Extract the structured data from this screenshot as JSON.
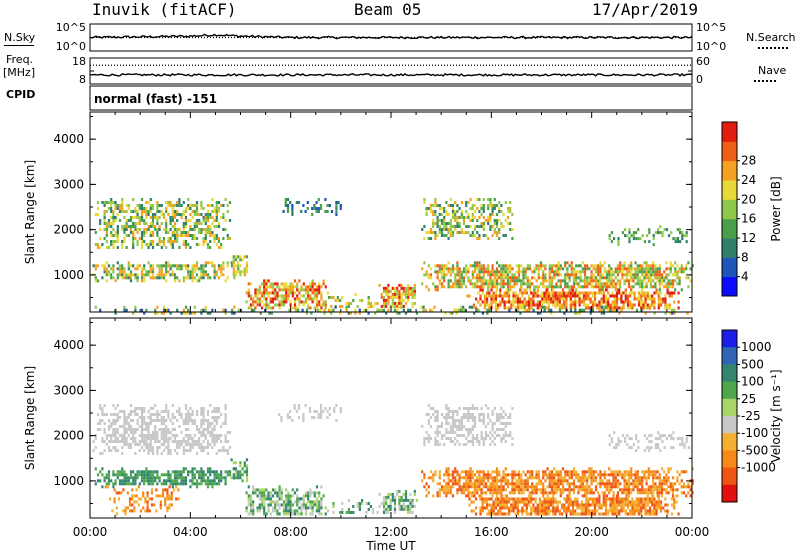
{
  "header": {
    "title": "Inuvik (fitACF)",
    "beam": "Beam 05",
    "date": "17/Apr/2019"
  },
  "left_labels": {
    "nsky": "N.Sky",
    "freq": "Freq.",
    "freq_unit": "[MHz]",
    "cpid": "CPID"
  },
  "right_labels": {
    "nsearch": "N.Search",
    "nave": "Nave"
  },
  "cpid_text": "normal (fast) -151",
  "chart_data": [
    {
      "type": "line",
      "name": "noise",
      "left_ticks": [
        "10^5",
        "10^0"
      ],
      "right_ticks": [
        "10^5",
        "10^0"
      ],
      "series": [
        {
          "style": "solid",
          "x": [
            0,
            4,
            5,
            6,
            8,
            12,
            16,
            20,
            24
          ],
          "y": [
            0.5,
            0.55,
            0.6,
            0.55,
            0.5,
            0.5,
            0.5,
            0.5,
            0.5
          ]
        },
        {
          "style": "dotted",
          "x": [
            0,
            24
          ],
          "y": [
            0.5,
            0.5
          ]
        }
      ]
    },
    {
      "type": "line",
      "name": "freq-nave",
      "left_ticks": [
        "18",
        "8"
      ],
      "right_ticks": [
        "60",
        "0"
      ],
      "series": [
        {
          "style": "dotted",
          "x": [
            0,
            24
          ],
          "y": [
            0.72,
            0.72
          ]
        },
        {
          "style": "solid",
          "x": [
            0,
            24
          ],
          "y": [
            0.35,
            0.35
          ]
        }
      ]
    },
    {
      "type": "heatmap",
      "name": "power",
      "ylabel": "Slant Range [km]",
      "ylim": [
        180,
        4600
      ],
      "xlim": [
        0,
        24
      ],
      "yticks": [
        "1000",
        "2000",
        "3000",
        "4000"
      ],
      "colorbar_label": "Power [dB]",
      "colorbar_ticks": [
        "4",
        "8",
        "12",
        "16",
        "20",
        "24",
        "28"
      ],
      "colorbar_colors": [
        "#0b0bff",
        "#1f54b8",
        "#2f7f6a",
        "#4aa04a",
        "#90c84b",
        "#e8d838",
        "#f4a021",
        "#ef6017",
        "#e21c0e"
      ],
      "blobs": [
        {
          "x0": 0.1,
          "x1": 5.6,
          "y0": 1600,
          "y1": 2700,
          "level": [
            2,
            6
          ],
          "density": 0.55
        },
        {
          "x0": 0.1,
          "x1": 5.8,
          "y0": 900,
          "y1": 1300,
          "level": [
            2,
            6
          ],
          "density": 0.7
        },
        {
          "x0": 5.6,
          "x1": 6.3,
          "y0": 1000,
          "y1": 1500,
          "level": [
            3,
            6
          ],
          "density": 0.6
        },
        {
          "x0": 6.2,
          "x1": 9.5,
          "y0": 250,
          "y1": 900,
          "level": [
            4,
            8
          ],
          "density": 0.7
        },
        {
          "x0": 9.4,
          "x1": 11.5,
          "y0": 300,
          "y1": 600,
          "level": [
            3,
            6
          ],
          "density": 0.35
        },
        {
          "x0": 11.5,
          "x1": 13.0,
          "y0": 300,
          "y1": 800,
          "level": [
            4,
            8
          ],
          "density": 0.7
        },
        {
          "x0": 7.5,
          "x1": 10.0,
          "y0": 2350,
          "y1": 2700,
          "level": [
            1,
            3
          ],
          "density": 0.35
        },
        {
          "x0": 13.2,
          "x1": 16.8,
          "y0": 1800,
          "y1": 2700,
          "level": [
            2,
            6
          ],
          "density": 0.5
        },
        {
          "x0": 13.2,
          "x1": 24,
          "y0": 700,
          "y1": 1300,
          "level": [
            3,
            7
          ],
          "density": 0.75
        },
        {
          "x0": 15.0,
          "x1": 23.5,
          "y0": 250,
          "y1": 700,
          "level": [
            5,
            8
          ],
          "density": 0.8
        },
        {
          "x0": 20.5,
          "x1": 24,
          "y0": 1700,
          "y1": 2100,
          "level": [
            2,
            4
          ],
          "density": 0.35
        },
        {
          "x0": 0.1,
          "x1": 24,
          "y0": 180,
          "y1": 320,
          "level": [
            1,
            6
          ],
          "density": 0.4
        }
      ]
    },
    {
      "type": "heatmap",
      "name": "velocity",
      "ylabel": "Slant Range [km]",
      "ylim": [
        180,
        4600
      ],
      "xlim": [
        0,
        24
      ],
      "yticks": [
        "1000",
        "2000",
        "3000",
        "4000"
      ],
      "xticks": [
        "00:00",
        "04:00",
        "08:00",
        "12:00",
        "16:00",
        "20:00",
        "00:00"
      ],
      "xlabel": "Time UT",
      "colorbar_label": "Velocity [m s⁻¹]",
      "colorbar_ticks": [
        "1000",
        "500",
        "100",
        "25",
        "-25",
        "-100",
        "-500",
        "-1000"
      ],
      "colorbar_colors": [
        "#1c1ce8",
        "#2f65b4",
        "#33866e",
        "#4ea84b",
        "#a8d46a",
        "#c8c8c8",
        "#f4b030",
        "#f58a1a",
        "#ef5514",
        "#e10f0f"
      ],
      "blobs": [
        {
          "x0": 0.1,
          "x1": 5.6,
          "y0": 1600,
          "y1": 2700,
          "level": [
            5,
            5
          ],
          "density": 0.55
        },
        {
          "x0": 0.1,
          "x1": 5.8,
          "y0": 900,
          "y1": 1300,
          "level": [
            2,
            3
          ],
          "density": 0.7
        },
        {
          "x0": 5.6,
          "x1": 6.3,
          "y0": 1000,
          "y1": 1500,
          "level": [
            2,
            4
          ],
          "density": 0.6
        },
        {
          "x0": 0.5,
          "x1": 3.5,
          "y0": 300,
          "y1": 900,
          "level": [
            6,
            8
          ],
          "density": 0.35
        },
        {
          "x0": 6.2,
          "x1": 9.5,
          "y0": 250,
          "y1": 900,
          "level": [
            2,
            5
          ],
          "density": 0.7
        },
        {
          "x0": 9.4,
          "x1": 11.5,
          "y0": 300,
          "y1": 600,
          "level": [
            2,
            5
          ],
          "density": 0.35
        },
        {
          "x0": 11.5,
          "x1": 13.0,
          "y0": 300,
          "y1": 800,
          "level": [
            2,
            5
          ],
          "density": 0.7
        },
        {
          "x0": 7.5,
          "x1": 10.0,
          "y0": 2350,
          "y1": 2700,
          "level": [
            5,
            5
          ],
          "density": 0.35
        },
        {
          "x0": 13.2,
          "x1": 16.8,
          "y0": 1800,
          "y1": 2700,
          "level": [
            5,
            5
          ],
          "density": 0.5
        },
        {
          "x0": 13.2,
          "x1": 24,
          "y0": 700,
          "y1": 1300,
          "level": [
            6,
            8
          ],
          "density": 0.75
        },
        {
          "x0": 15.0,
          "x1": 23.5,
          "y0": 250,
          "y1": 700,
          "level": [
            6,
            8
          ],
          "density": 0.8
        },
        {
          "x0": 20.5,
          "x1": 24,
          "y0": 1700,
          "y1": 2100,
          "level": [
            5,
            5
          ],
          "density": 0.35
        }
      ]
    }
  ]
}
